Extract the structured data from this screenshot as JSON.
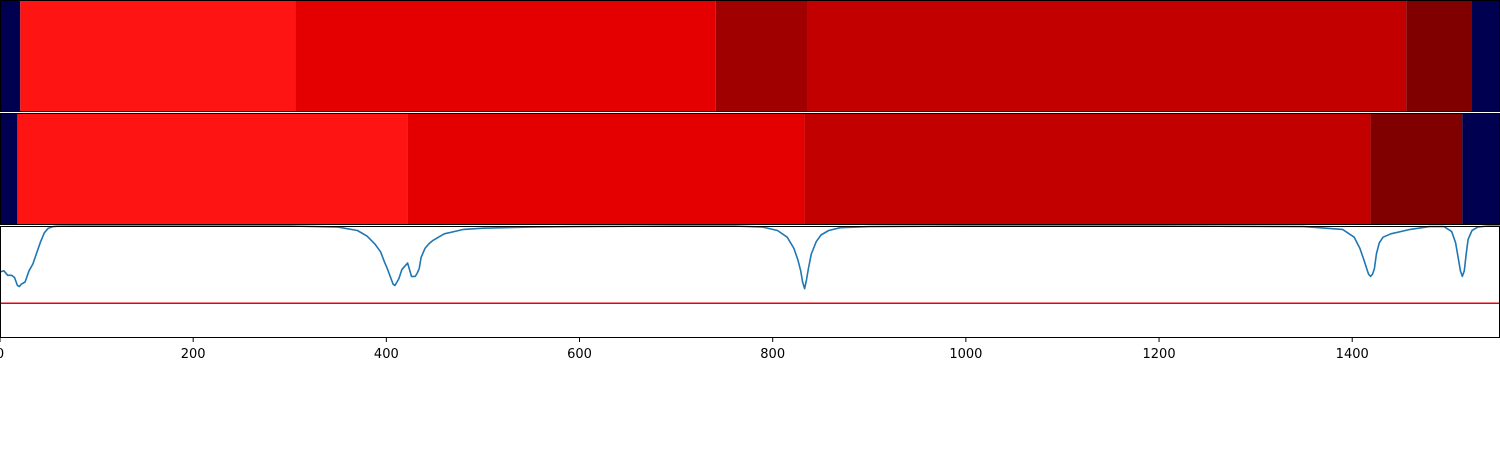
{
  "chart_data": [
    {
      "type": "heatmap",
      "xlim": [
        0,
        1553
      ],
      "segments": [
        {
          "start": 0,
          "end": 21,
          "color": "#000050"
        },
        {
          "start": 21,
          "end": 306,
          "color": "#ff1414"
        },
        {
          "start": 306,
          "end": 741,
          "color": "#e40000"
        },
        {
          "start": 741,
          "end": 836,
          "color": "#a00000"
        },
        {
          "start": 836,
          "end": 1456,
          "color": "#c20000"
        },
        {
          "start": 1456,
          "end": 1524,
          "color": "#800000"
        },
        {
          "start": 1524,
          "end": 1553,
          "color": "#000050"
        }
      ]
    },
    {
      "type": "heatmap",
      "xlim": [
        0,
        1553
      ],
      "segments": [
        {
          "start": 0,
          "end": 18,
          "color": "#000050"
        },
        {
          "start": 18,
          "end": 422,
          "color": "#ff1414"
        },
        {
          "start": 422,
          "end": 833,
          "color": "#e40000"
        },
        {
          "start": 833,
          "end": 1419,
          "color": "#c20000"
        },
        {
          "start": 1419,
          "end": 1514,
          "color": "#800000"
        },
        {
          "start": 1514,
          "end": 1553,
          "color": "#000050"
        }
      ]
    },
    {
      "type": "line",
      "xlim": [
        0,
        1553
      ],
      "ylim": [
        0,
        1
      ],
      "xticks": [
        "0",
        "200",
        "400",
        "600",
        "800",
        "1000",
        "1200",
        "1400"
      ],
      "xtick_values": [
        0,
        200,
        400,
        600,
        800,
        1000,
        1200,
        1400
      ],
      "threshold": {
        "value": 0.31,
        "color": "#e8000b"
      },
      "series": [
        {
          "color": "#1f77b4",
          "x": [
            0,
            4,
            8,
            12,
            15,
            18,
            20,
            22,
            26,
            30,
            34,
            38,
            42,
            46,
            50,
            55,
            60,
            80,
            120,
            200,
            300,
            350,
            370,
            380,
            388,
            394,
            398,
            401,
            404,
            407,
            409,
            411,
            413,
            416,
            419,
            422,
            426,
            430,
            432,
            434,
            436,
            440,
            444,
            448,
            452,
            456,
            460,
            470,
            480,
            500,
            550,
            600,
            700,
            760,
            790,
            805,
            815,
            822,
            826,
            829,
            831,
            833,
            835,
            837,
            840,
            845,
            850,
            858,
            870,
            900,
            1000,
            1200,
            1350,
            1390,
            1402,
            1408,
            1412,
            1415,
            1417,
            1419,
            1421,
            1423,
            1425,
            1428,
            1432,
            1440,
            1460,
            1480,
            1495,
            1503,
            1507,
            1510,
            1512,
            1514,
            1516,
            1518,
            1520,
            1524,
            1530,
            1540,
            1553
          ],
          "y": [
            0.59,
            0.6,
            0.56,
            0.56,
            0.54,
            0.47,
            0.46,
            0.48,
            0.5,
            0.6,
            0.66,
            0.76,
            0.86,
            0.94,
            0.98,
            0.995,
            0.998,
            1,
            1,
            1,
            1,
            0.99,
            0.96,
            0.91,
            0.84,
            0.77,
            0.68,
            0.62,
            0.55,
            0.48,
            0.47,
            0.5,
            0.53,
            0.61,
            0.64,
            0.67,
            0.55,
            0.55,
            0.58,
            0.62,
            0.72,
            0.8,
            0.84,
            0.87,
            0.89,
            0.91,
            0.93,
            0.95,
            0.97,
            0.98,
            0.99,
            0.995,
            1,
            1,
            0.99,
            0.96,
            0.9,
            0.8,
            0.7,
            0.6,
            0.5,
            0.44,
            0.52,
            0.62,
            0.75,
            0.86,
            0.92,
            0.96,
            0.985,
            0.995,
            1,
            1,
            0.995,
            0.97,
            0.9,
            0.8,
            0.7,
            0.62,
            0.57,
            0.55,
            0.57,
            0.62,
            0.75,
            0.85,
            0.9,
            0.93,
            0.97,
            0.995,
            0.995,
            0.95,
            0.85,
            0.7,
            0.6,
            0.55,
            0.6,
            0.75,
            0.88,
            0.96,
            0.99,
            1,
            1
          ]
        }
      ]
    }
  ]
}
